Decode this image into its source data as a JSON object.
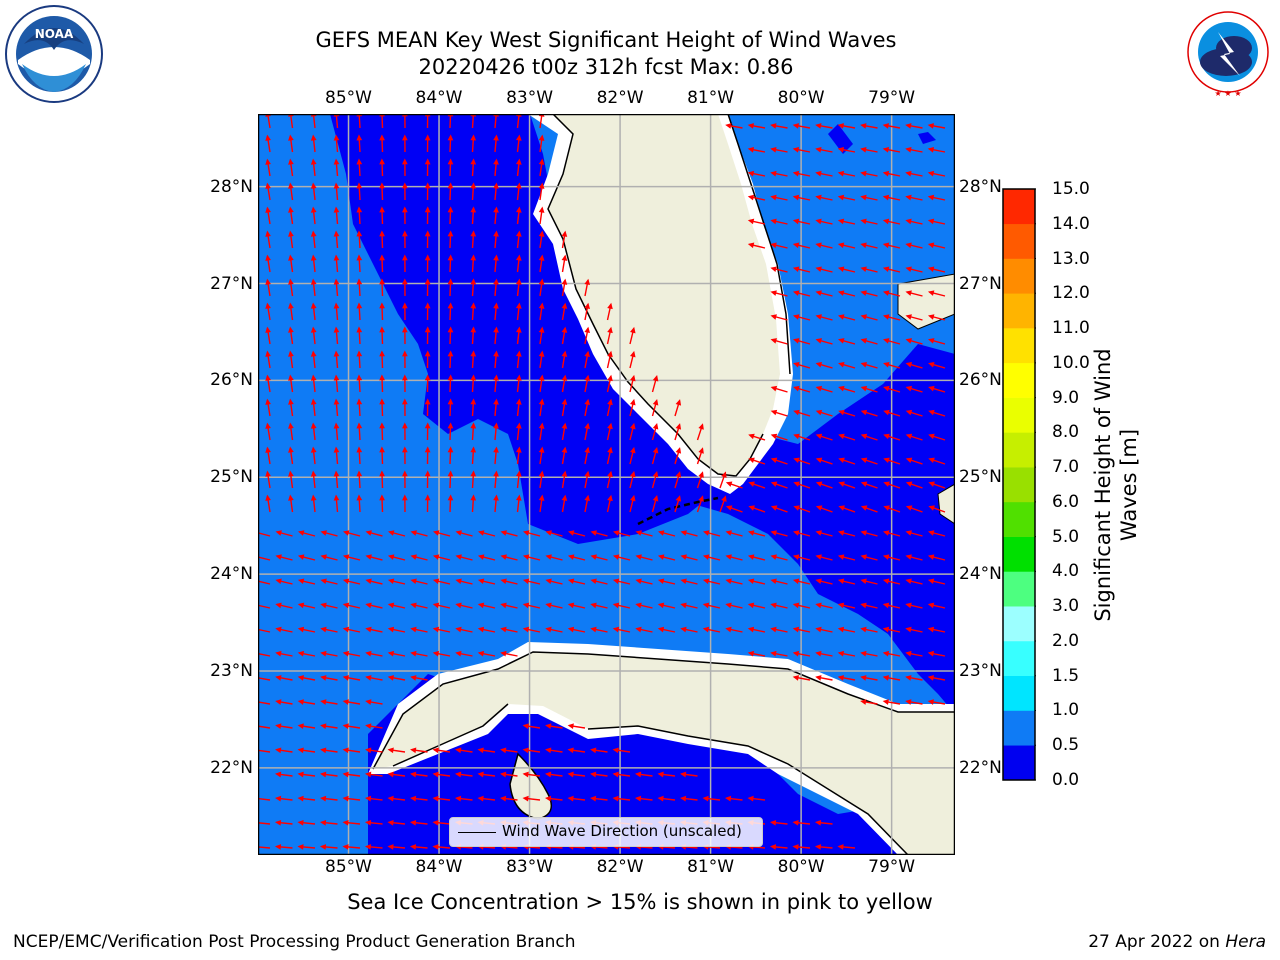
{
  "header": {
    "title_line1": "GEFS MEAN Key West Significant Height of Wind Waves",
    "title_line2": "20220426 t00z 312h fcst   Max: 0.86"
  },
  "logos": {
    "left": {
      "name": "noaa-logo",
      "text": "NOAA",
      "ring_text": "NATIONAL OCEANIC AND ATMOSPHERIC ADMINISTRATION · U.S. DEPARTMENT OF COMMERCE"
    },
    "right": {
      "name": "nws-logo",
      "ring_text": "NATIONAL WEATHER SERVICE"
    }
  },
  "map": {
    "lon_labels": [
      "85°W",
      "84°W",
      "83°W",
      "82°W",
      "81°W",
      "80°W",
      "79°W"
    ],
    "lat_labels": [
      "28°N",
      "27°N",
      "26°N",
      "25°N",
      "24°N",
      "23°N",
      "22°N"
    ],
    "lon_range": [
      -86.0,
      -78.3
    ],
    "lat_range": [
      21.1,
      28.75
    ],
    "legend_label": "Wind Wave Direction (unscaled)",
    "colors": {
      "ocean_low": "#0000f5",
      "ocean_mid": "#0f7bf5",
      "land": "#efefdc",
      "arrow": "#ff0000",
      "grid": "#b0b0b0"
    }
  },
  "colorbar": {
    "label": "Significant Height of Wind Waves [m]",
    "ticks": [
      "0.0",
      "0.5",
      "1.0",
      "1.5",
      "2.0",
      "3.0",
      "4.0",
      "5.0",
      "6.0",
      "7.0",
      "8.0",
      "9.0",
      "10.0",
      "11.0",
      "12.0",
      "13.0",
      "14.0",
      "15.0"
    ],
    "colors": [
      "#0000f0",
      "#0f7bf5",
      "#00e5ff",
      "#38ffff",
      "#9cffff",
      "#4dff80",
      "#00e000",
      "#50e000",
      "#99e000",
      "#c6ef00",
      "#eaff00",
      "#ffff00",
      "#ffe100",
      "#ffb400",
      "#ff8c00",
      "#ff5a00",
      "#ff2800"
    ]
  },
  "footer": {
    "note": "Sea Ice Concentration > 15% is shown in pink to yellow",
    "left": "NCEP/EMC/Verification Post Processing Product Generation Branch",
    "right_prefix": "27 Apr 2022 on",
    "right_host": "Hera"
  }
}
